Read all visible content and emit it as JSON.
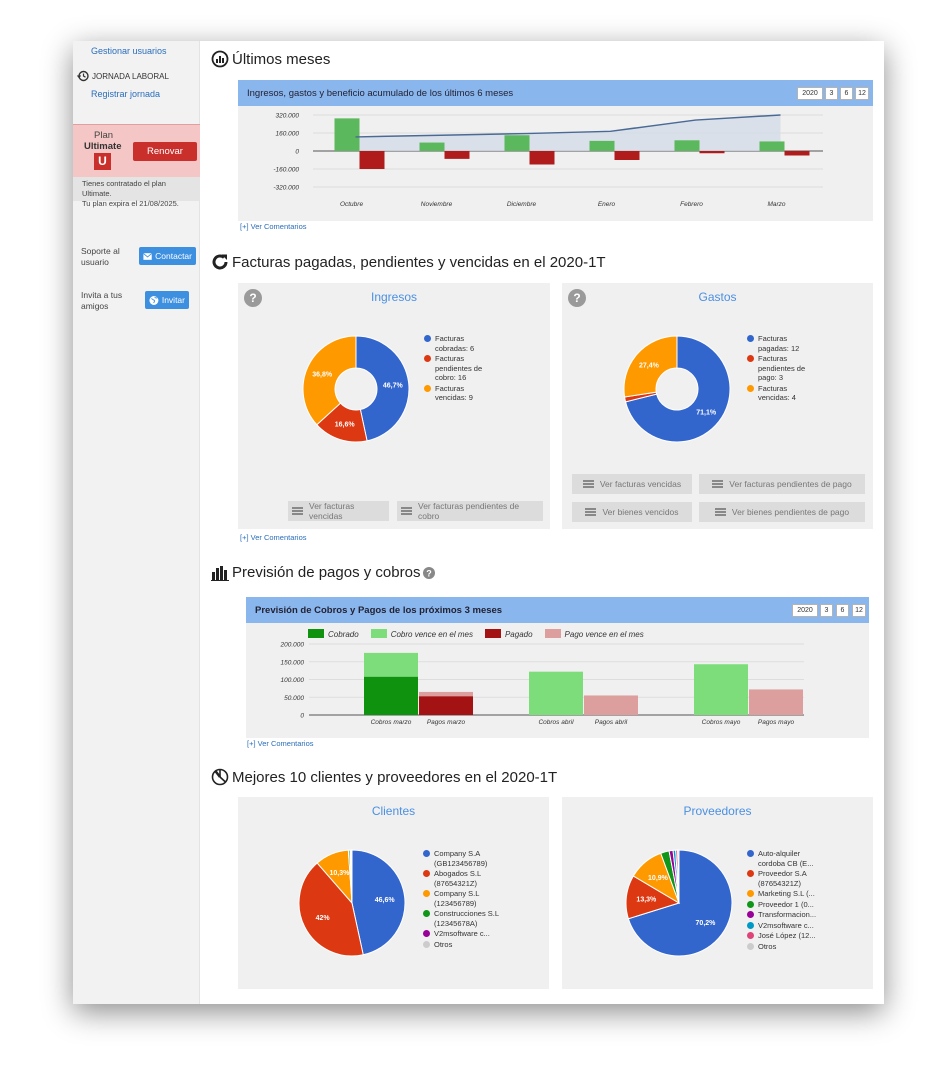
{
  "sidebar": {
    "manage_users": "Gestionar usuarios",
    "jornada_title": "JORNADA LABORAL",
    "register": "Registrar jornada",
    "plan_word": "Plan",
    "plan_name": "Ultimate",
    "plan_badge": "U",
    "renew": "Renovar",
    "plan_info_1": "Tienes contratado el plan Ultimate.",
    "plan_info_2": "Tu plan expira el 21/08/2025.",
    "support_1": "Soporte al",
    "support_2": "usuario",
    "contact": "Contactar",
    "invite_1": "Invita a tus",
    "invite_2": "amigos",
    "invite_btn": "Invitar"
  },
  "sections": {
    "s1": "Últimos meses",
    "s2": "Facturas pagadas, pendientes y vencidas en el 2020-1T",
    "s3": "Previsión de pagos y cobros",
    "s4": "Mejores 10 clientes y proveedores en el 2020-1T"
  },
  "period_buttons": [
    "2020",
    "3",
    "6",
    "12"
  ],
  "comments": "[+] Ver Comentarios",
  "chart1": {
    "header": "Ingresos, gastos y beneficio acumulado de los últimos 6 meses",
    "y_ticks": [
      "320.000",
      "160.000",
      "0",
      "-160.000",
      "-320.000"
    ]
  },
  "ingresos": {
    "title": "Ingresos",
    "help": "?",
    "legend": [
      "Facturas cobradas: 6",
      "Facturas pendientes de cobro: 16",
      "Facturas vencidas: 9"
    ],
    "labels": [
      "46,7%",
      "16,6%",
      "36,8%"
    ],
    "buttons": [
      "Ver facturas vencidas",
      "Ver facturas pendientes de cobro"
    ]
  },
  "gastos": {
    "title": "Gastos",
    "help": "?",
    "legend": [
      "Facturas pagadas: 12",
      "Facturas pendientes de pago: 3",
      "Facturas vencidas: 4"
    ],
    "labels": [
      "71,1%",
      "27,4%"
    ],
    "buttons": [
      "Ver facturas vencidas",
      "Ver facturas pendientes de pago",
      "Ver bienes vencidos",
      "Ver bienes pendientes de pago"
    ]
  },
  "chart3": {
    "header": "Previsión de Cobros y Pagos de los próximos 3 meses",
    "legend": [
      "Cobrado",
      "Cobro vence en el mes",
      "Pagado",
      "Pago vence en el mes"
    ],
    "y_ticks": [
      "200.000",
      "150.000",
      "100.000",
      "50.000",
      "0"
    ]
  },
  "clientes": {
    "title": "Clientes",
    "legend": [
      "Company S.A (GB123456789)",
      "Abogados S.L (87654321Z)",
      "Company S.L (123456789)",
      "Construcciones S.L (12345678A)",
      "V2msoftware c...",
      "Otros"
    ],
    "labels": [
      "46,6%",
      "42%",
      "10,3%"
    ]
  },
  "proveedores": {
    "title": "Proveedores",
    "legend": [
      "Auto-alquiler cordoba CB (E...",
      "Proveedor S.A (87654321Z)",
      "Marketing S.L (...",
      "Proveedor 1 (0...",
      "Transformacion...",
      "V2msoftware c...",
      "José López (12...",
      "Otros"
    ],
    "labels": [
      "70,2%",
      "13,3%",
      "10,9%"
    ]
  },
  "chart_data": [
    {
      "type": "bar",
      "categories": [
        "Octubre",
        "Noviembre",
        "Diciembre",
        "Enero",
        "Febrero",
        "Marzo"
      ],
      "series": [
        {
          "values": [
            290000,
            75000,
            140000,
            90000,
            95000,
            85000
          ],
          "color": "#5cb85c"
        },
        {
          "values": [
            -160000,
            -70000,
            -120000,
            -80000,
            -20000,
            -40000
          ],
          "color": "#b01c1c"
        },
        {
          "type": "line",
          "values": [
            125000,
            140000,
            155000,
            175000,
            275000,
            320000
          ],
          "color": "#4a6a95"
        }
      ],
      "ylim": [
        -320000,
        320000
      ],
      "grid": true
    },
    {
      "type": "pie",
      "title": "Ingresos",
      "values": [
        46.7,
        16.6,
        36.8
      ],
      "colors": [
        "#3366cc",
        "#dc3912",
        "#ff9900"
      ]
    },
    {
      "type": "pie",
      "title": "Gastos",
      "values": [
        71.1,
        1.5,
        27.4
      ],
      "colors": [
        "#3366cc",
        "#dc3912",
        "#ff9900"
      ]
    },
    {
      "type": "bar",
      "categories": [
        "Cobros marzo",
        "Pagos marzo",
        "Cobros abril",
        "Pagos abril",
        "Cobros mayo",
        "Pagos mayo"
      ],
      "stacks": [
        {
          "parts": [
            {
              "name": "Cobrado",
              "value": 108000
            },
            {
              "name": "Cobro vence en el mes",
              "value": 67000
            }
          ]
        },
        {
          "parts": [
            {
              "name": "Pagado",
              "value": 53000
            },
            {
              "name": "Pago vence en el mes",
              "value": 12000
            }
          ]
        },
        {
          "parts": [
            {
              "name": "Cobro vence en el mes",
              "value": 122000
            }
          ]
        },
        {
          "parts": [
            {
              "name": "Pago vence en el mes",
              "value": 55000
            }
          ]
        },
        {
          "parts": [
            {
              "name": "Cobro vence en el mes",
              "value": 143000
            }
          ]
        },
        {
          "parts": [
            {
              "name": "Pago vence en el mes",
              "value": 72000
            }
          ]
        }
      ],
      "colors": {
        "Cobrado": "#0f930f",
        "Cobro vence en el mes": "#7ddd7a",
        "Pagado": "#a31313",
        "Pago vence en el mes": "#dd9e9e"
      },
      "ylim": [
        0,
        200000
      ],
      "grid": true
    },
    {
      "type": "pie",
      "title": "Clientes",
      "values": [
        46.6,
        42,
        10.3,
        0.5,
        0.3,
        0.3
      ],
      "colors": [
        "#3366cc",
        "#dc3912",
        "#ff9900",
        "#109618",
        "#990099",
        "#cccccc"
      ]
    },
    {
      "type": "pie",
      "title": "Proveedores",
      "values": [
        70.2,
        13.3,
        10.9,
        2.6,
        1.2,
        0.8,
        0.6,
        0.4
      ],
      "colors": [
        "#3366cc",
        "#dc3912",
        "#ff9900",
        "#109618",
        "#990099",
        "#0099c6",
        "#dd4477",
        "#cccccc"
      ]
    }
  ]
}
